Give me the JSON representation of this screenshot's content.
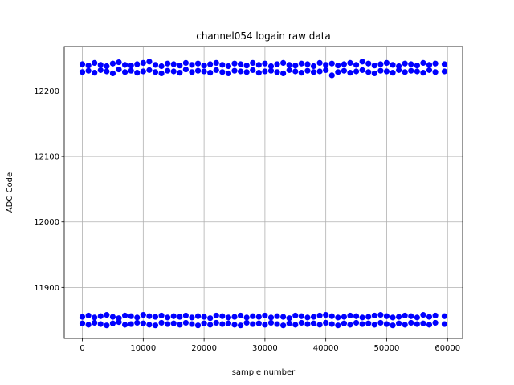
{
  "chart_data": {
    "type": "scatter",
    "title": "channel054 logain raw data",
    "x_label": "sample number",
    "y_label": "ADC Code",
    "x": [
      0,
      1000,
      2000,
      3000,
      4000,
      5000,
      6000,
      7000,
      8000,
      9000,
      10000,
      11000,
      12000,
      13000,
      14000,
      15000,
      16000,
      17000,
      18000,
      19000,
      20000,
      21000,
      22000,
      23000,
      24000,
      25000,
      26000,
      27000,
      28000,
      29000,
      30000,
      31000,
      32000,
      33000,
      34000,
      35000,
      36000,
      37000,
      38000,
      39000,
      40000,
      41000,
      42000,
      43000,
      44000,
      45000,
      46000,
      47000,
      48000,
      49000,
      50000,
      51000,
      52000,
      53000,
      54000,
      55000,
      56000,
      57000,
      58000,
      59500
    ],
    "series": [
      {
        "color": "#0000ff",
        "values": [
          12229,
          12231,
          12228,
          12232,
          12230,
          12227,
          12233,
          12229,
          12231,
          12228,
          12230,
          12232,
          12229,
          12227,
          12231,
          12230,
          12228,
          12233,
          12229,
          12231,
          12230,
          12228,
          12232,
          12229,
          12227,
          12231,
          12230,
          12229,
          12232,
          12228,
          12230,
          12231,
          12229,
          12227,
          12232,
          12230,
          12228,
          12231,
          12229,
          12230,
          12232,
          12224,
          12229,
          12231,
          12228,
          12230,
          12232,
          12229,
          12227,
          12231,
          12230,
          12228,
          12232,
          12229,
          12231,
          12230,
          12228,
          12232,
          12229,
          12230
        ]
      },
      {
        "color": "#0000ff",
        "values": [
          12241,
          12239,
          12243,
          12240,
          12238,
          12242,
          12244,
          12240,
          12239,
          12241,
          12243,
          12245,
          12240,
          12238,
          12242,
          12241,
          12239,
          12243,
          12240,
          12242,
          12239,
          12241,
          12243,
          12240,
          12238,
          12242,
          12241,
          12239,
          12243,
          12240,
          12242,
          12238,
          12241,
          12243,
          12240,
          12239,
          12242,
          12241,
          12238,
          12243,
          12240,
          12242,
          12239,
          12241,
          12243,
          12240,
          12245,
          12242,
          12239,
          12241,
          12243,
          12240,
          12238,
          12242,
          12241,
          12239,
          12243,
          12240,
          12242,
          12241
        ]
      },
      {
        "color": "#0000ff",
        "values": [
          11845,
          11843,
          11846,
          11844,
          11842,
          11845,
          11847,
          11843,
          11844,
          11846,
          11845,
          11843,
          11842,
          11846,
          11844,
          11845,
          11843,
          11846,
          11844,
          11842,
          11845,
          11843,
          11846,
          11844,
          11845,
          11843,
          11842,
          11846,
          11844,
          11845,
          11843,
          11846,
          11844,
          11842,
          11845,
          11843,
          11846,
          11844,
          11845,
          11843,
          11846,
          11844,
          11842,
          11845,
          11843,
          11846,
          11844,
          11845,
          11843,
          11846,
          11844,
          11842,
          11845,
          11843,
          11846,
          11844,
          11845,
          11843,
          11846,
          11844
        ]
      },
      {
        "color": "#0000ff",
        "values": [
          11855,
          11857,
          11854,
          11856,
          11858,
          11855,
          11853,
          11857,
          11856,
          11854,
          11858,
          11856,
          11855,
          11857,
          11854,
          11856,
          11855,
          11857,
          11854,
          11856,
          11855,
          11853,
          11857,
          11856,
          11854,
          11855,
          11857,
          11854,
          11856,
          11855,
          11857,
          11854,
          11856,
          11855,
          11853,
          11857,
          11856,
          11854,
          11855,
          11857,
          11858,
          11856,
          11854,
          11855,
          11857,
          11856,
          11854,
          11855,
          11857,
          11858,
          11856,
          11854,
          11855,
          11857,
          11856,
          11854,
          11858,
          11855,
          11857,
          11856
        ]
      }
    ],
    "xlim": [
      -2975,
      62475
    ],
    "ylim": [
      11822,
      12268
    ],
    "xticks": [
      0,
      10000,
      20000,
      30000,
      40000,
      50000,
      60000
    ],
    "yticks": [
      11900,
      12000,
      12100,
      12200
    ],
    "grid": true
  }
}
